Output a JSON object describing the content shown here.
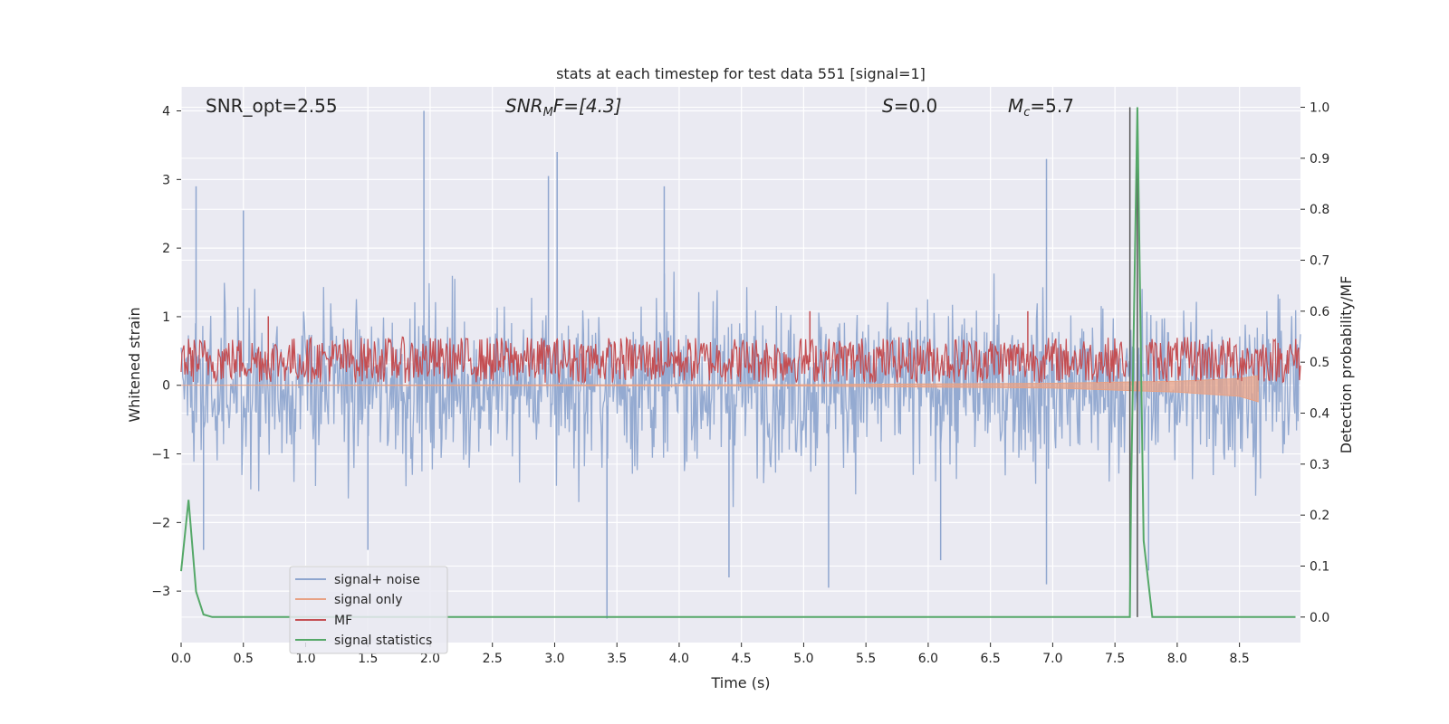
{
  "chart_data": {
    "type": "line",
    "title": "stats at each timestep for test data 551 [signal=1]",
    "xlabel": "Time (s)",
    "ylabel_left": "Whitened strain",
    "ylabel_right": "Detection probability/MF",
    "xlim": [
      0.0,
      8.99
    ],
    "ylim_left": [
      -3.75,
      4.35
    ],
    "ylim_right": [
      -0.05,
      1.04
    ],
    "x_ticks": [
      "0.0",
      "0.5",
      "1.0",
      "1.5",
      "2.0",
      "2.5",
      "3.0",
      "3.5",
      "4.0",
      "4.5",
      "5.0",
      "5.5",
      "6.0",
      "6.5",
      "7.0",
      "7.5",
      "8.0",
      "8.5"
    ],
    "y_ticks_left": [
      "−3",
      "−2",
      "−1",
      "0",
      "1",
      "2",
      "3",
      "4"
    ],
    "y_ticks_right": [
      "0.0",
      "0.1",
      "0.2",
      "0.3",
      "0.4",
      "0.5",
      "0.6",
      "0.7",
      "0.8",
      "0.9",
      "1.0"
    ],
    "grid": true,
    "legend_placement": "lower-left",
    "annotations": {
      "snr_opt": "SNR_opt=2.55",
      "snr_mf_base": "SNR",
      "snr_mf_sub": "M",
      "snr_mf_rest": "F=[4.3]",
      "s_sym": "S",
      "s_val": "=0.0",
      "mc_sym": "M",
      "mc_sub": "c",
      "mc_val": "=5.7"
    },
    "series": [
      {
        "name": "signal+ noise",
        "axis": "left",
        "color": "#8fa6cf",
        "note_visible": "dense noisy strain roughly within [-3.4, 4.0]",
        "peaks_x": [
          0.12,
          0.5,
          1.95,
          2.95,
          3.02,
          3.88,
          6.95
        ],
        "peaks_y": [
          2.9,
          2.55,
          4.0,
          3.05,
          3.4,
          2.9,
          3.3
        ],
        "troughs_x": [
          0.18,
          1.5,
          3.42,
          4.4,
          5.2,
          6.1,
          6.95,
          7.77
        ],
        "troughs_y": [
          -2.4,
          -2.4,
          -3.4,
          -2.8,
          -2.95,
          -2.55,
          -2.9,
          -2.7
        ]
      },
      {
        "name": "signal only",
        "axis": "left",
        "color": "#e8a285",
        "note_visible": "chirp near zero growing until ~8.65 s",
        "x": [
          0.0,
          5.0,
          7.0,
          8.0,
          8.5,
          8.65
        ],
        "y_hi": [
          0.0,
          0.01,
          0.03,
          0.06,
          0.1,
          0.14
        ],
        "y_lo": [
          0.0,
          -0.01,
          -0.04,
          -0.1,
          -0.16,
          -0.24
        ]
      },
      {
        "name": "MF",
        "axis": "right",
        "color": "#c44e52",
        "note_visible": "matched filter oscillating about 0.5 with occasional peaks",
        "peak_x": [
          0.7,
          5.05,
          6.8
        ],
        "peak_y": [
          0.59,
          0.6,
          0.6
        ]
      },
      {
        "name": "signal statistics",
        "axis": "right",
        "color": "#55a868",
        "x": [
          0.0,
          0.06,
          0.12,
          0.18,
          0.25,
          7.62,
          7.63,
          7.68,
          7.73,
          7.8,
          8.95
        ],
        "y": [
          0.09,
          0.23,
          0.05,
          0.005,
          0.0,
          0.0,
          0.25,
          1.0,
          0.15,
          0.0,
          0.0
        ]
      }
    ],
    "vertical_lines": [
      {
        "x": 7.62,
        "color": "#555555"
      },
      {
        "x": 7.68,
        "color": "#555555"
      }
    ]
  }
}
